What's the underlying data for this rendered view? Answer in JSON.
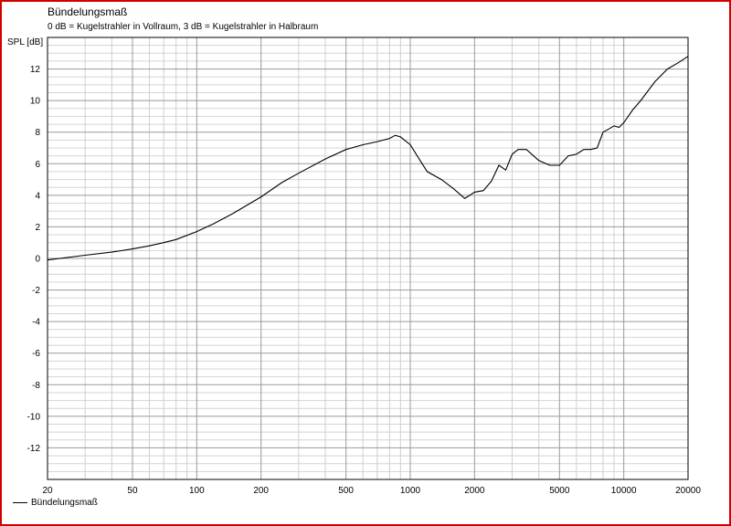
{
  "chart_data": {
    "type": "line",
    "title": "Bündelungsmaß",
    "subtitle": "0 dB = Kugelstrahler in Vollraum, 3 dB = Kugelstrahler in Halbraum",
    "ylabel": "SPL [dB]",
    "xlabel": "",
    "xscale": "log",
    "xlim": [
      20,
      20000
    ],
    "ylim": [
      -14,
      14
    ],
    "xticks": [
      20,
      50,
      100,
      200,
      500,
      1000,
      2000,
      5000,
      10000,
      20000
    ],
    "yticks": [
      12,
      10,
      8,
      6,
      4,
      2,
      0,
      -2,
      -4,
      -6,
      -8,
      -10,
      -12
    ],
    "grid": true,
    "legend": "bottom-left",
    "series": [
      {
        "name": "Bündelungsmaß",
        "color": "#000000",
        "x": [
          20,
          30,
          40,
          50,
          60,
          70,
          80,
          100,
          120,
          150,
          200,
          250,
          300,
          400,
          500,
          600,
          700,
          800,
          850,
          900,
          1000,
          1100,
          1200,
          1400,
          1600,
          1800,
          1900,
          2000,
          2200,
          2400,
          2600,
          2800,
          3000,
          3200,
          3500,
          4000,
          4500,
          5000,
          5500,
          6000,
          6500,
          7000,
          7500,
          8000,
          8500,
          9000,
          9500,
          10000,
          11000,
          12000,
          14000,
          16000,
          18000,
          20000
        ],
        "y": [
          -0.1,
          0.2,
          0.4,
          0.6,
          0.8,
          1.0,
          1.2,
          1.7,
          2.2,
          2.9,
          3.9,
          4.8,
          5.4,
          6.3,
          6.9,
          7.2,
          7.4,
          7.6,
          7.8,
          7.7,
          7.2,
          6.3,
          5.5,
          5.0,
          4.4,
          3.8,
          4.0,
          4.2,
          4.3,
          4.9,
          5.9,
          5.6,
          6.6,
          6.9,
          6.9,
          6.2,
          5.9,
          5.9,
          6.5,
          6.6,
          6.9,
          6.9,
          7.0,
          8.0,
          8.2,
          8.4,
          8.3,
          8.6,
          9.4,
          10.0,
          11.2,
          12.0,
          12.4,
          12.8
        ]
      }
    ]
  }
}
